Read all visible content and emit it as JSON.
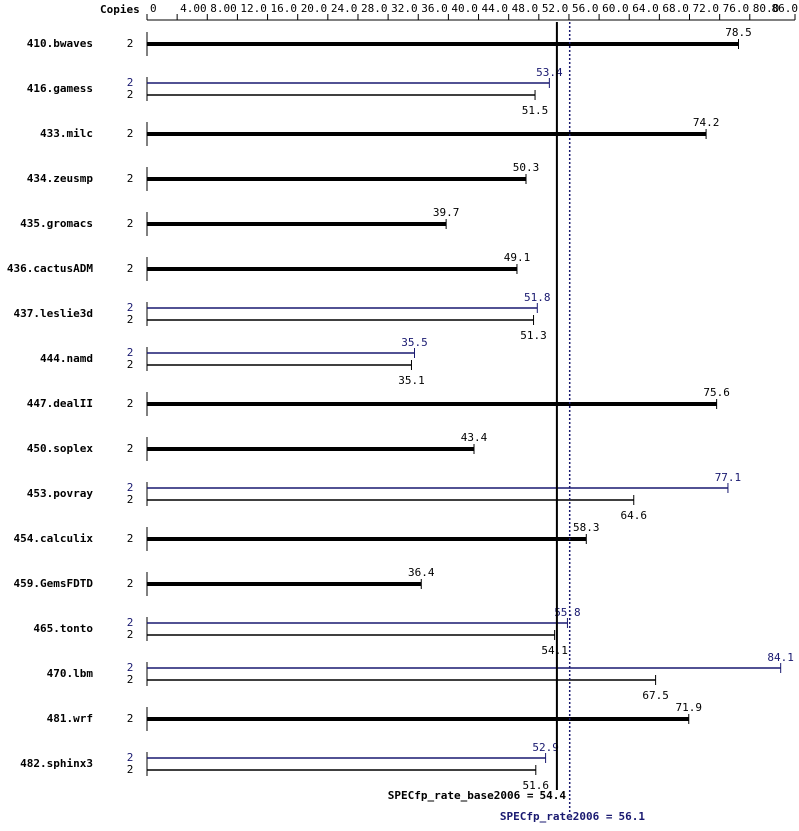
{
  "chart_data": {
    "type": "hbar",
    "copies_header": "Copies",
    "categories": [
      "410.bwaves",
      "416.gamess",
      "433.milc",
      "434.zeusmp",
      "435.gromacs",
      "436.cactusADM",
      "437.leslie3d",
      "444.namd",
      "447.dealII",
      "450.soplex",
      "453.povray",
      "454.calculix",
      "459.GemsFDTD",
      "465.tonto",
      "470.lbm",
      "481.wrf",
      "482.sphinx3"
    ],
    "series": [
      {
        "color": "#000000",
        "values": [
          78.5,
          51.5,
          74.2,
          50.3,
          39.7,
          49.1,
          51.3,
          35.1,
          75.6,
          43.4,
          64.6,
          58.3,
          36.4,
          54.1,
          67.5,
          71.9,
          51.6
        ],
        "copies": [
          2,
          2,
          2,
          2,
          2,
          2,
          2,
          2,
          2,
          2,
          2,
          2,
          2,
          2,
          2,
          2,
          2
        ]
      },
      {
        "color": "#191970",
        "values": [
          null,
          53.4,
          null,
          null,
          null,
          null,
          51.8,
          35.5,
          null,
          null,
          77.1,
          null,
          null,
          55.8,
          84.1,
          null,
          52.9
        ],
        "copies": [
          null,
          2,
          null,
          null,
          null,
          null,
          2,
          2,
          null,
          null,
          2,
          null,
          null,
          2,
          2,
          null,
          2
        ]
      }
    ],
    "xlim": [
      0,
      86
    ],
    "xticks": [
      0,
      {
        "value": 4,
        "label": "4.00"
      },
      {
        "value": 8,
        "label": "8.00"
      },
      {
        "value": 12,
        "label": "12.0"
      },
      {
        "value": 16,
        "label": "16.0"
      },
      {
        "value": 20,
        "label": "20.0"
      },
      {
        "value": 24,
        "label": "24.0"
      },
      {
        "value": 28,
        "label": "28.0"
      },
      {
        "value": 32,
        "label": "32.0"
      },
      {
        "value": 36,
        "label": "36.0"
      },
      {
        "value": 40,
        "label": "40.0"
      },
      {
        "value": 44,
        "label": "44.0"
      },
      {
        "value": 48,
        "label": "48.0"
      },
      {
        "value": 52,
        "label": "52.0"
      },
      {
        "value": 56,
        "label": "56.0"
      },
      {
        "value": 60,
        "label": "60.0"
      },
      {
        "value": 64,
        "label": "64.0"
      },
      {
        "value": 68,
        "label": "68.0"
      },
      {
        "value": 72,
        "label": "72.0"
      },
      {
        "value": 76,
        "label": "76.0"
      },
      {
        "value": 80,
        "label": "80.0"
      },
      {
        "value": 86,
        "label": "86.0"
      }
    ],
    "summary": [
      {
        "label": "SPECfp_rate_base2006 =",
        "value": 54.4,
        "color": "#000000",
        "style": "solid"
      },
      {
        "label": "SPECfp_rate2006 =",
        "value": 56.1,
        "color": "#191970",
        "style": "dotted"
      }
    ]
  }
}
